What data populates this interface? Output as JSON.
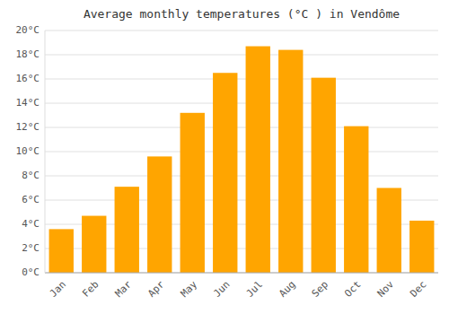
{
  "chart_data": {
    "type": "bar",
    "title": "Average monthly temperatures (°C ) in Vendôme",
    "categories": [
      "Jan",
      "Feb",
      "Mar",
      "Apr",
      "May",
      "Jun",
      "Jul",
      "Aug",
      "Sep",
      "Oct",
      "Nov",
      "Dec"
    ],
    "values": [
      3.6,
      4.7,
      7.1,
      9.6,
      13.2,
      16.5,
      18.7,
      18.4,
      16.1,
      12.1,
      7.0,
      4.3
    ],
    "color": "#FFA500",
    "ylim": [
      0,
      20
    ],
    "yticks": [
      {
        "value": 0,
        "label": "0°C"
      },
      {
        "value": 2,
        "label": "2°C"
      },
      {
        "value": 4,
        "label": "4°C"
      },
      {
        "value": 6,
        "label": "6°C"
      },
      {
        "value": 8,
        "label": "8°C"
      },
      {
        "value": 10,
        "label": "10°C"
      },
      {
        "value": 12,
        "label": "12°C"
      },
      {
        "value": 14,
        "label": "14°C"
      },
      {
        "value": 16,
        "label": "16°C"
      },
      {
        "value": 18,
        "label": "18°C"
      },
      {
        "value": 20,
        "label": "20°C"
      }
    ],
    "grid": true
  }
}
